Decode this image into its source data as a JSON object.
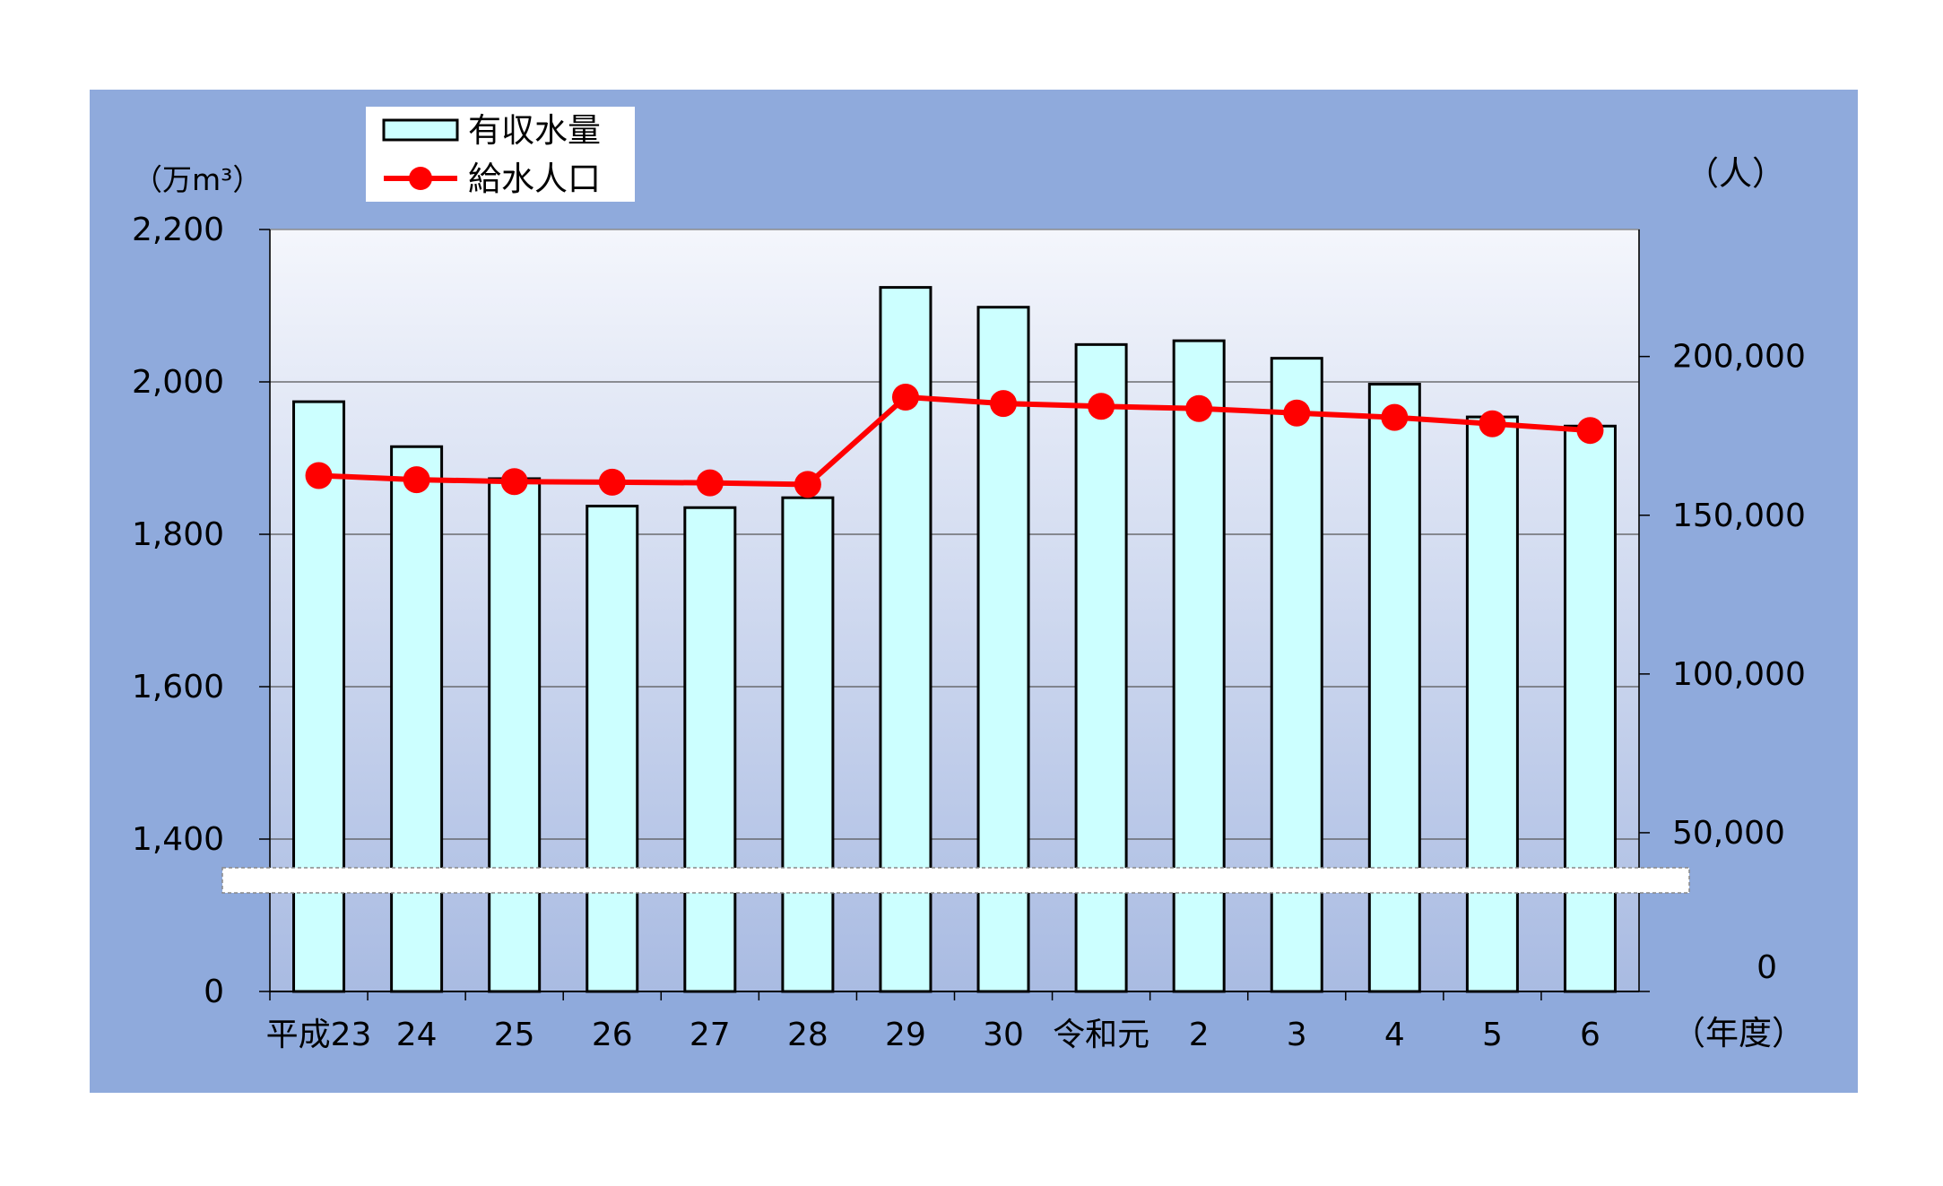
{
  "chart_data": {
    "type": "bar",
    "categories": [
      "平成23",
      "24",
      "25",
      "26",
      "27",
      "28",
      "29",
      "30",
      "令和元",
      "2",
      "3",
      "4",
      "5",
      "6"
    ],
    "series": [
      {
        "name": "有収水量",
        "type": "bar",
        "axis": "left",
        "values": [
          1974,
          1915,
          1873,
          1837,
          1835,
          1848,
          2124,
          2098,
          2049,
          2054,
          2031,
          1997,
          1954,
          1942
        ]
      },
      {
        "name": "給水人口",
        "type": "line",
        "axis": "right",
        "values": [
          162500,
          161200,
          160600,
          160400,
          160200,
          159700,
          187200,
          185200,
          184300,
          183600,
          182200,
          180800,
          178800,
          176700
        ]
      }
    ],
    "left_axis": {
      "unit": "（万m³）",
      "ticks": [
        "2,200",
        "2,000",
        "1,800",
        "1,600",
        "1,400",
        "0"
      ],
      "tick_values": [
        2200,
        2000,
        1800,
        1600,
        1400
      ],
      "ylim": [
        1400,
        2200
      ],
      "broken": true
    },
    "right_axis": {
      "unit": "（人）",
      "ticks": [
        "200,000",
        "150,000",
        "100,000",
        "50,000",
        "0"
      ],
      "tick_values": [
        200000,
        150000,
        100000,
        50000,
        0
      ],
      "ylim": [
        0,
        240000
      ]
    },
    "xlabel": "（年度）",
    "grid": true,
    "legend": "top-left",
    "colors": {
      "outer_bg": "#8faadc",
      "plot_top": "#f4f6fc",
      "plot_bottom": "#a9bbe2",
      "bar_fill": "#ccffff",
      "line": "#ff0000"
    }
  }
}
